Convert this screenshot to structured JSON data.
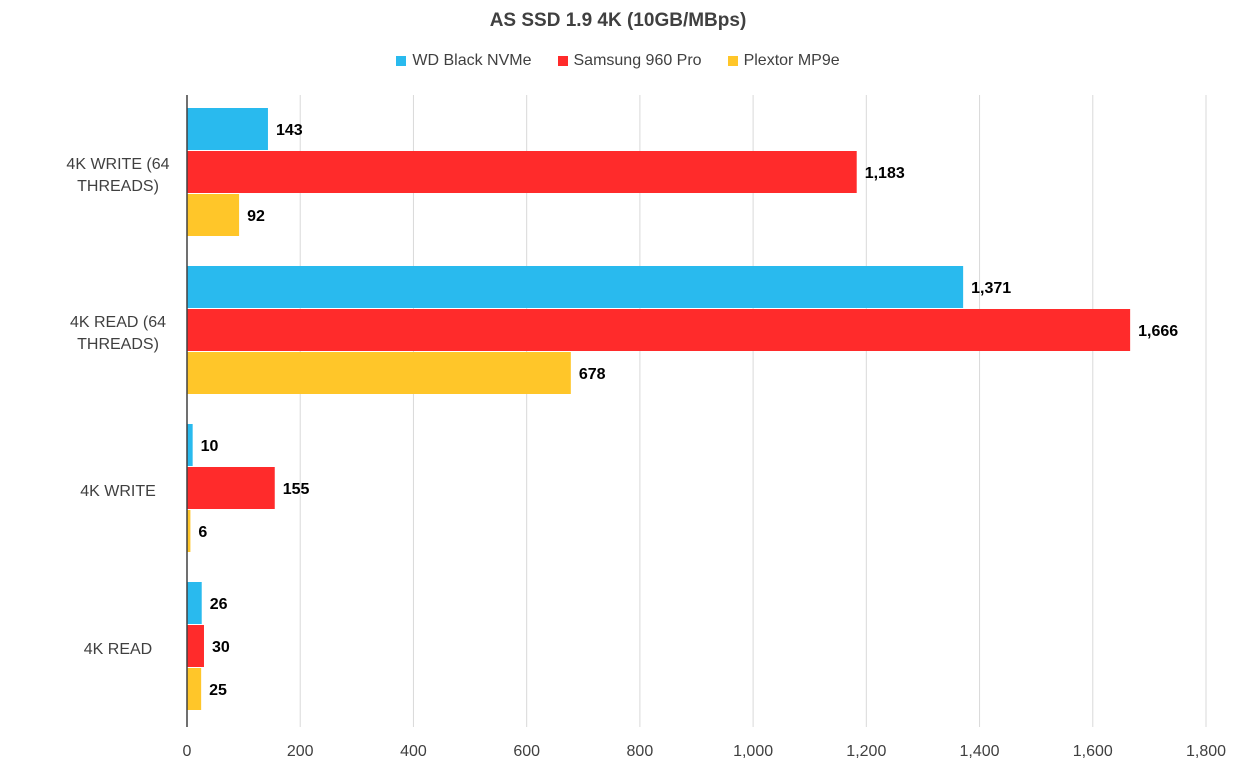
{
  "chart_data": {
    "type": "bar",
    "orientation": "horizontal",
    "title": "AS SSD 1.9 4K (10GB/MBps)",
    "categories": [
      [
        "4K WRITE (64",
        "THREADS)"
      ],
      [
        "4K READ (64",
        "THREADS)"
      ],
      [
        "4K WRITE"
      ],
      [
        "4K READ"
      ]
    ],
    "series": [
      {
        "name": "WD Black NVMe",
        "color": "#29BAEE",
        "values": [
          143,
          1371,
          10,
          26
        ],
        "labels": [
          "143",
          "1,371",
          "10",
          "26"
        ]
      },
      {
        "name": "Samsung 960 Pro",
        "color": "#FF2B2B",
        "values": [
          1183,
          1666,
          155,
          30
        ],
        "labels": [
          "1,183",
          "1,666",
          "155",
          "30"
        ]
      },
      {
        "name": "Plextor MP9e",
        "color": "#FFC629",
        "values": [
          92,
          678,
          6,
          25
        ],
        "labels": [
          "92",
          "678",
          "6",
          "25"
        ]
      }
    ],
    "xlim": [
      0,
      1800
    ],
    "xticks": [
      0,
      200,
      400,
      600,
      800,
      1000,
      1200,
      1400,
      1600,
      1800
    ],
    "xtick_labels": [
      "0",
      "200",
      "400",
      "600",
      "800",
      "1,000",
      "1,200",
      "1,400",
      "1,600",
      "1,800"
    ],
    "grid": "vertical",
    "legend_position": "top"
  }
}
